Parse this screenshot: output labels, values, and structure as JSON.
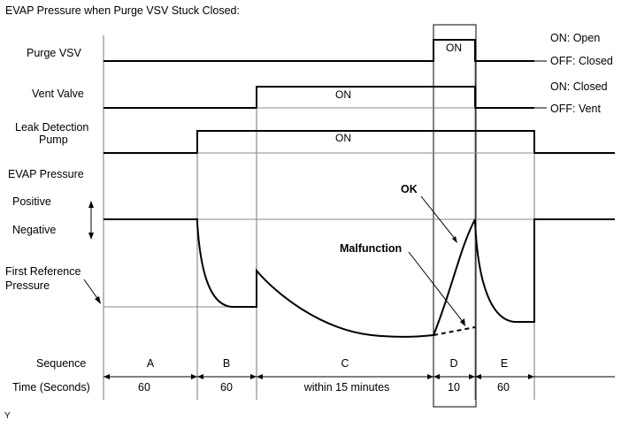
{
  "title": "EVAP Pressure when Purge VSV Stuck Closed:",
  "signals": {
    "purge_vsv": {
      "label": "Purge VSV",
      "on": "ON",
      "state_on": "ON: Open",
      "state_off": "OFF: Closed"
    },
    "vent_valve": {
      "label": "Vent Valve",
      "on": "ON",
      "state_on": "ON: Closed",
      "state_off": "OFF: Vent"
    },
    "leak_pump": {
      "label_line1": "Leak Detection",
      "label_line2": "Pump",
      "on": "ON"
    }
  },
  "pressure": {
    "label": "EVAP Pressure",
    "positive": "Positive",
    "negative": "Negative",
    "ref_line1": "First Reference",
    "ref_line2": "Pressure",
    "ok": "OK",
    "malfunction": "Malfunction"
  },
  "sequence": {
    "label": "Sequence",
    "time_label": "Time (Seconds)",
    "steps": [
      {
        "id": "A",
        "time": "60"
      },
      {
        "id": "B",
        "time": "60"
      },
      {
        "id": "C",
        "time": "within 15 minutes"
      },
      {
        "id": "D",
        "time": "10"
      },
      {
        "id": "E",
        "time": "60"
      }
    ]
  },
  "footnote": "Y"
}
